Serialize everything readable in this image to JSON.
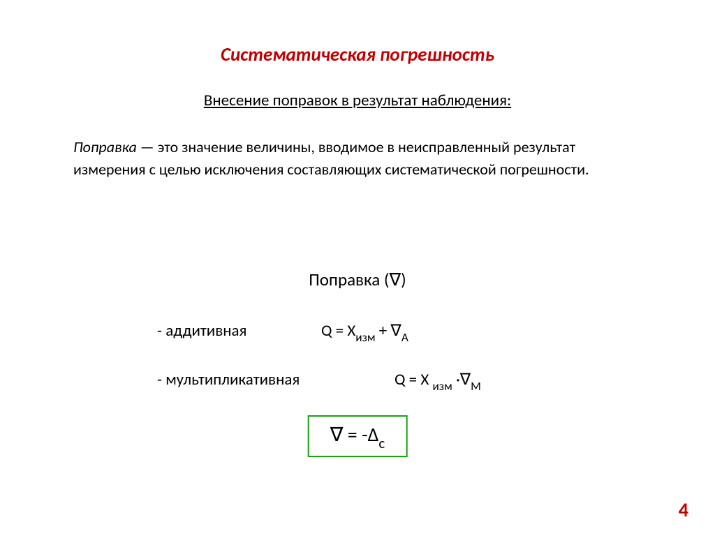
{
  "colors": {
    "title_color": "#c00000",
    "text_color": "#000000",
    "box_border": "#18a010",
    "pagenum_color": "#c00000",
    "background": "#ffffff"
  },
  "typography": {
    "title_fontsize": 27,
    "subtitle_fontsize": 23,
    "body_fontsize": 22,
    "formula_fontsize": 23,
    "box_fontsize": 28,
    "pagenum_fontsize": 28
  },
  "title": "Систематическая погрешность",
  "subtitle": "Внесение поправок в результат наблюдения:",
  "definition": {
    "term": "Поправка",
    "dash": " — ",
    "text": "это значение величины, вводимое в неисправленный результат измерения с целью исключения составляющих систематической погрешности."
  },
  "correction_label": "Поправка (∇)",
  "rows": {
    "additive": {
      "label": "- аддитивная",
      "expr_prefix": "Q = X",
      "expr_sub1": "изм",
      "expr_mid": " + ∇",
      "expr_sub2": "А"
    },
    "multiplicative": {
      "label": "- мультипликативная",
      "expr_prefix": "Q = X ",
      "expr_sub1": "изм",
      "expr_mid": " ·∇",
      "expr_sub2": "М"
    }
  },
  "box_formula": {
    "left": "∇ = -Δ",
    "sub": "с"
  },
  "page_number": "4"
}
